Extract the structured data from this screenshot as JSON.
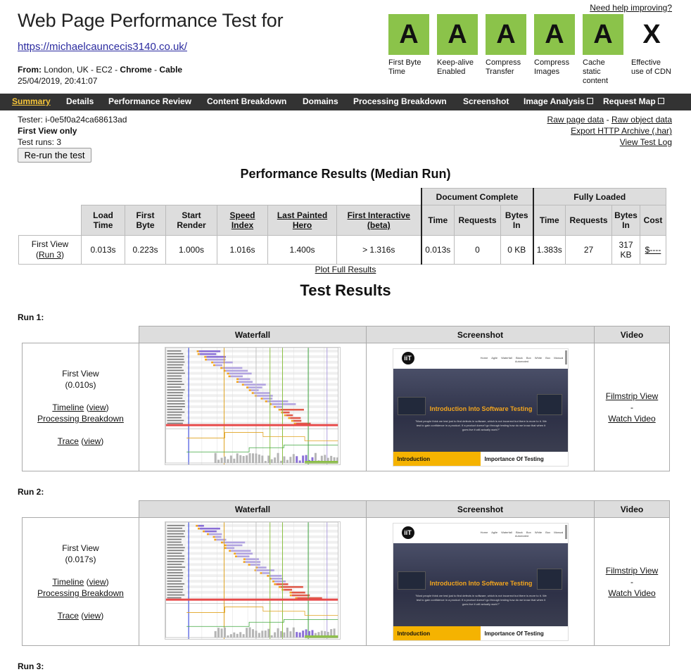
{
  "header": {
    "help_link": "Need help improving?",
    "title": "Web Page Performance Test for",
    "url": "https://michaelcauncecis3140.co.uk/",
    "from_label": "From:",
    "from_location": "London, UK - EC2",
    "from_browser": "Chrome",
    "from_connection": "Cable",
    "from_separator": " - ",
    "date": "25/04/2019, 20:41:07"
  },
  "grades": [
    {
      "grade": "A",
      "label": "First Byte Time",
      "status": "pass"
    },
    {
      "grade": "A",
      "label": "Keep-alive Enabled",
      "status": "pass"
    },
    {
      "grade": "A",
      "label": "Compress Transfer",
      "status": "pass"
    },
    {
      "grade": "A",
      "label": "Compress Images",
      "status": "pass"
    },
    {
      "grade": "A",
      "label": "Cache static content",
      "status": "pass"
    },
    {
      "grade": "X",
      "label": "Effective use of CDN",
      "status": "none"
    }
  ],
  "colors": {
    "grade_pass": "#8bc34a",
    "nav_bg": "#333333",
    "nav_active": "#f8c63a"
  },
  "nav": [
    "Summary",
    "Details",
    "Performance Review",
    "Content Breakdown",
    "Domains",
    "Processing Breakdown",
    "Screenshot",
    "Image Analysis",
    "Request Map"
  ],
  "nav_active": "Summary",
  "tester": {
    "tester": "Tester: i-0e5f0a24ca68613ad",
    "view_mode": "First View only",
    "runs": "Test runs: 3",
    "rerun_button": "Re-run the test"
  },
  "raw_links": {
    "raw_page": "Raw page data",
    "dash": " - ",
    "raw_object": "Raw object data",
    "export_har": "Export HTTP Archive (.har)",
    "view_log": "View Test Log"
  },
  "performance": {
    "heading": "Performance Results (Median Run)",
    "group_doc": "Document Complete",
    "group_full": "Fully Loaded",
    "headers": {
      "load_time": "Load Time",
      "first_byte": "First Byte",
      "start_render": "Start Render",
      "speed_index": "Speed Index",
      "last_painted": "Last Painted Hero",
      "first_interactive": "First Interactive (beta)",
      "time": "Time",
      "requests": "Requests",
      "bytes_in": "Bytes In",
      "cost": "Cost"
    },
    "row_label": "First View",
    "row_run": "Run 3",
    "values": {
      "load_time": "0.013s",
      "first_byte": "0.223s",
      "start_render": "1.000s",
      "speed_index": "1.016s",
      "last_painted": "1.400s",
      "first_interactive": "> 1.316s",
      "doc_time": "0.013s",
      "doc_requests": "0",
      "doc_bytes": "0 KB",
      "full_time": "1.383s",
      "full_requests": "27",
      "full_bytes": "317 KB",
      "cost": "$----"
    },
    "plot_link": "Plot Full Results"
  },
  "results": {
    "heading": "Test Results",
    "col_waterfall": "Waterfall",
    "col_screenshot": "Screenshot",
    "col_video": "Video",
    "timeline": "Timeline",
    "view": "view",
    "processing": "Processing Breakdown",
    "trace": "Trace",
    "filmstrip": "Filmstrip View",
    "video_dash": "-",
    "watch_video": "Watch Video",
    "runs": [
      {
        "label": "Run 1:",
        "view": "First View",
        "time": "(0.010s)"
      },
      {
        "label": "Run 2:",
        "view": "First View",
        "time": "(0.017s)"
      },
      {
        "label": "Run 3:"
      }
    ]
  },
  "screenshot_content": {
    "logo": "iiT",
    "nav_links": "Home Agile Waterfall Black Box White Box Manual Automated",
    "hero_title": "Introduction Into Software Testing",
    "hero_text": "\"Most people think we test just to find defects in software, which is not incorrect but there is more to it. We test to gain confidence in a product. If a product doesn't go through testing how do we know that when it goes live it will actually work?\"",
    "tab_left": "Introduction",
    "tab_right": "Importance Of Testing"
  }
}
